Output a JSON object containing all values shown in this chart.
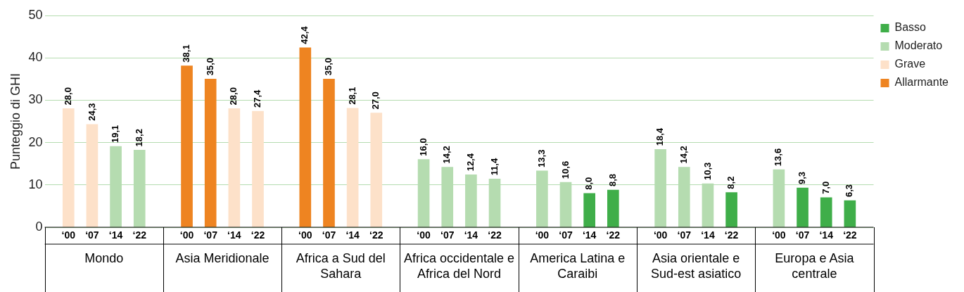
{
  "chart_data": {
    "type": "bar",
    "stacked": true,
    "ylabel": "Punteggio di GHI",
    "ylim": [
      0,
      50
    ],
    "yticks": [
      0,
      10,
      20,
      30,
      40,
      50
    ],
    "grid": "y",
    "legend": "top right",
    "categories": [
      "‘00",
      "‘07",
      "‘14",
      "‘22",
      "‘00",
      "‘07",
      "‘14",
      "‘22",
      "‘00",
      "‘07",
      "‘14",
      "‘22",
      "‘00",
      "‘07",
      "‘14",
      "‘22",
      "‘00",
      "‘07",
      "‘14",
      "‘22",
      "‘00",
      "‘07",
      "‘14",
      "‘22",
      "‘00",
      "‘07",
      "‘14",
      "‘22"
    ],
    "annotations": [
      "Mondo",
      "Asia Meridionale",
      "Africa a Sud del Sahara",
      "Africa occidentale e Africa del Nord",
      "America Latina e Caraibi",
      "Asia orientale e Sud-est asiatico",
      "Europa e Asia centrale"
    ],
    "series": [
      {
        "name": "Basso",
        "color": "#3fae49",
        "values": [
          null,
          null,
          null,
          null,
          null,
          null,
          null,
          null,
          null,
          null,
          null,
          null,
          null,
          null,
          null,
          null,
          null,
          null,
          8.0,
          8.8,
          null,
          null,
          null,
          8.2,
          null,
          9.3,
          7.0,
          6.3
        ],
        "value_labels": [
          null,
          null,
          null,
          null,
          null,
          null,
          null,
          null,
          null,
          null,
          null,
          null,
          null,
          null,
          null,
          null,
          null,
          null,
          "8,0",
          "8,8",
          null,
          null,
          null,
          "8,2",
          null,
          "9,3",
          "7,0",
          "6,3"
        ]
      },
      {
        "name": "Moderato",
        "color": "#b5dcb0",
        "values": [
          null,
          null,
          19.1,
          18.2,
          null,
          null,
          null,
          null,
          null,
          null,
          null,
          null,
          16.0,
          14.2,
          12.4,
          11.4,
          13.3,
          10.6,
          null,
          null,
          18.4,
          14.2,
          10.3,
          null,
          13.6,
          null,
          null,
          null
        ],
        "value_labels": [
          null,
          null,
          "19,1",
          "18,2",
          null,
          null,
          null,
          null,
          null,
          null,
          null,
          null,
          "16,0",
          "14,2",
          "12,4",
          "11,4",
          "13,3",
          "10,6",
          null,
          null,
          "18,4",
          "14,2",
          "10,3",
          null,
          "13,6",
          null,
          null,
          null
        ]
      },
      {
        "name": "Grave",
        "color": "#fde1c9",
        "values": [
          28.0,
          24.3,
          null,
          null,
          null,
          null,
          28.0,
          27.4,
          null,
          null,
          28.1,
          27.0,
          null,
          null,
          null,
          null,
          null,
          null,
          null,
          null,
          null,
          null,
          null,
          null,
          null,
          null,
          null,
          null
        ],
        "value_labels": [
          "28,0",
          "24,3",
          null,
          null,
          null,
          null,
          "28,0",
          "27,4",
          null,
          null,
          "28,1",
          "27,0",
          null,
          null,
          null,
          null,
          null,
          null,
          null,
          null,
          null,
          null,
          null,
          null,
          null,
          null,
          null,
          null
        ]
      },
      {
        "name": "Allarmante",
        "color": "#ee8421",
        "values": [
          null,
          null,
          null,
          null,
          38.1,
          35.0,
          null,
          null,
          42.4,
          35.0,
          null,
          null,
          null,
          null,
          null,
          null,
          null,
          null,
          null,
          null,
          null,
          null,
          null,
          null,
          null,
          null,
          null,
          null
        ],
        "value_labels": [
          null,
          null,
          null,
          null,
          "38,1",
          "35,0",
          null,
          null,
          "42,4",
          "35,0",
          null,
          null,
          null,
          null,
          null,
          null,
          null,
          null,
          null,
          null,
          null,
          null,
          null,
          null,
          null,
          null,
          null,
          null
        ]
      }
    ]
  }
}
